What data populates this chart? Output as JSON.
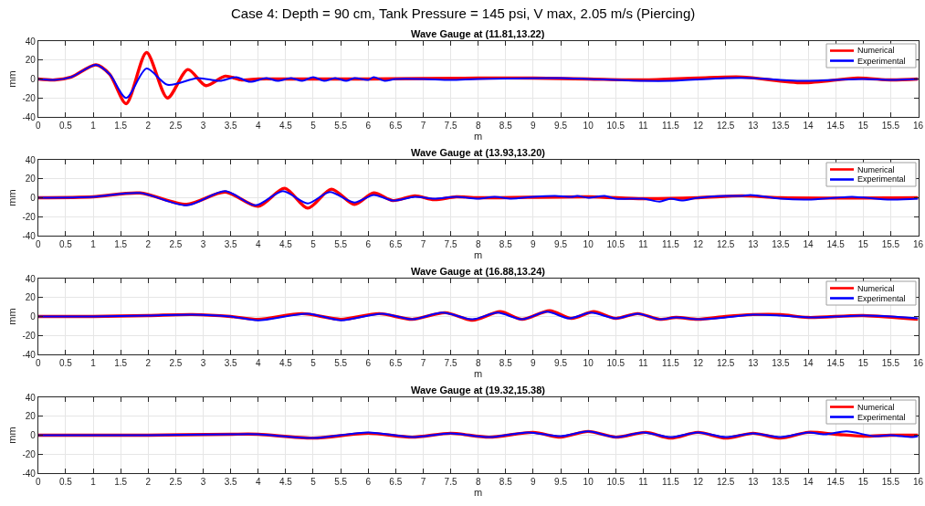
{
  "chart_data": [
    {
      "type": "line",
      "title": "Case 4: Depth = 90 cm, Tank Pressure = 145 psi, V max, 2.05 m/s (Piercing)",
      "subtitle": "Wave Gauge at (11.81,13.22)",
      "xlabel": "m",
      "ylabel": "mm",
      "xlim": [
        0,
        16
      ],
      "ylim": [
        -40,
        40
      ],
      "xticks": [
        0,
        0.5,
        1,
        1.5,
        2,
        2.5,
        3,
        3.5,
        4,
        4.5,
        5,
        5.5,
        6,
        6.5,
        7,
        7.5,
        8,
        8.5,
        9,
        9.5,
        10,
        10.5,
        11,
        11.5,
        12,
        12.5,
        13,
        13.5,
        14,
        14.5,
        15,
        15.5,
        16
      ],
      "yticks": [
        -40,
        -20,
        0,
        20,
        40
      ],
      "grid": true,
      "legend": "top right",
      "line_style": "solid",
      "series": [
        {
          "name": "Numerical",
          "color": "#ff0000",
          "x": [
            0,
            0.3,
            0.6,
            1.05,
            1.3,
            1.6,
            1.97,
            2.35,
            2.72,
            3.05,
            3.4,
            3.7,
            4,
            4.5,
            6,
            8,
            9,
            10,
            11,
            12,
            12.8,
            13.9,
            14.9,
            15.5,
            16
          ],
          "values": [
            0,
            -1,
            2,
            15,
            5,
            -26,
            28,
            -20,
            10,
            -7,
            3,
            -1,
            0,
            0,
            0,
            1,
            1,
            0,
            -1,
            1,
            2,
            -4,
            1,
            -1,
            0
          ]
        },
        {
          "name": "Experimental",
          "color": "#0000ff",
          "x": [
            0,
            0.3,
            0.6,
            1.05,
            1.3,
            1.6,
            1.97,
            2.35,
            2.9,
            3.3,
            3.6,
            3.85,
            4.15,
            4.35,
            4.6,
            4.8,
            5,
            5.2,
            5.4,
            5.6,
            5.75,
            6,
            6.1,
            6.3,
            6.5,
            7,
            7.5,
            8,
            9.5,
            10,
            11,
            11.5,
            12.5,
            13,
            13.8,
            15,
            15.5,
            16
          ],
          "values": [
            0,
            -1,
            2,
            15,
            5,
            -20,
            11,
            -6,
            1,
            -2,
            2,
            -3,
            1,
            -2,
            1,
            -2,
            2,
            -2,
            1,
            -2,
            1,
            -1,
            2,
            -2,
            0,
            0,
            -1,
            0,
            1,
            0,
            -2,
            -2,
            1,
            1,
            -2,
            0,
            -1,
            0
          ]
        }
      ]
    },
    {
      "type": "line",
      "title": "Wave Gauge at (13.93,13.20)",
      "xlabel": "m",
      "ylabel": "mm",
      "xlim": [
        0,
        16
      ],
      "ylim": [
        -40,
        40
      ],
      "xticks": [
        0,
        0.5,
        1,
        1.5,
        2,
        2.5,
        3,
        3.5,
        4,
        4.5,
        5,
        5.5,
        6,
        6.5,
        7,
        7.5,
        8,
        8.5,
        9,
        9.5,
        10,
        10.5,
        11,
        11.5,
        12,
        12.5,
        13,
        13.5,
        14,
        14.5,
        15,
        15.5,
        16
      ],
      "yticks": [
        -40,
        -20,
        0,
        20,
        40
      ],
      "grid": true,
      "legend": "top right",
      "line_style": "solid",
      "series": [
        {
          "name": "Numerical",
          "color": "#ff0000",
          "x": [
            0,
            1,
            1.85,
            2.7,
            3.4,
            4,
            4.48,
            4.9,
            5.33,
            5.75,
            6.1,
            6.45,
            6.85,
            7.2,
            7.6,
            8,
            10,
            11,
            12,
            12.8,
            13.5,
            16
          ],
          "values": [
            0,
            1,
            5,
            -7,
            6,
            -9,
            10,
            -11,
            9,
            -7,
            5,
            -3,
            2,
            -2,
            1,
            0,
            1,
            -1,
            0,
            2,
            0,
            0
          ]
        },
        {
          "name": "Experimental",
          "color": "#0000ff",
          "x": [
            0,
            1,
            1.85,
            2.7,
            3.4,
            3.95,
            4.45,
            4.9,
            5.3,
            5.75,
            6.1,
            6.45,
            6.85,
            7.2,
            7.6,
            8,
            8.3,
            8.6,
            9,
            9.4,
            9.7,
            9.8,
            10,
            10.3,
            10.5,
            11,
            11.3,
            11.5,
            11.7,
            12,
            12.5,
            12.8,
            12.95,
            13.5,
            14,
            14.5,
            14.8,
            15.5,
            16
          ],
          "values": [
            0,
            1,
            5,
            -8,
            7,
            -8,
            7,
            -6,
            6,
            -5,
            3,
            -3,
            1,
            -1,
            1,
            -1,
            1,
            -1,
            1,
            2,
            1,
            2,
            0,
            2,
            -1,
            -1,
            -4,
            -1,
            -3,
            0,
            2,
            2,
            3,
            -1,
            -2,
            0,
            1,
            -2,
            -1
          ]
        }
      ]
    },
    {
      "type": "line",
      "title": "Wave Gauge at (16.88,13.24)",
      "xlabel": "m",
      "ylabel": "mm",
      "xlim": [
        0,
        16
      ],
      "ylim": [
        -40,
        40
      ],
      "xticks": [
        0,
        0.5,
        1,
        1.5,
        2,
        2.5,
        3,
        3.5,
        4,
        4.5,
        5,
        5.5,
        6,
        6.5,
        7,
        7.5,
        8,
        8.5,
        9,
        9.5,
        10,
        10.5,
        11,
        11.5,
        12,
        12.5,
        13,
        13.5,
        14,
        14.5,
        15,
        15.5,
        16
      ],
      "yticks": [
        -40,
        -20,
        0,
        20,
        40
      ],
      "grid": true,
      "legend": "top right",
      "line_style": "solid",
      "series": [
        {
          "name": "Numerical",
          "color": "#ff0000",
          "x": [
            0,
            1,
            2,
            2.8,
            3.5,
            4,
            4.8,
            5.5,
            6.2,
            6.8,
            7.4,
            7.9,
            8.4,
            8.8,
            9.3,
            9.7,
            10.1,
            10.5,
            10.9,
            11.3,
            11.6,
            12,
            12.5,
            13,
            13.5,
            14,
            15,
            16
          ],
          "values": [
            0,
            0,
            1,
            2,
            0,
            -3,
            3,
            -3,
            3,
            -3,
            4,
            -4,
            5,
            -3,
            6,
            -2,
            5,
            -2,
            3,
            -3,
            -1,
            -3,
            0,
            2,
            2,
            -1,
            1,
            -3
          ]
        },
        {
          "name": "Experimental",
          "color": "#0000ff",
          "x": [
            0,
            1,
            2,
            2.8,
            3.5,
            4,
            4.9,
            5.5,
            6.25,
            6.8,
            7.35,
            7.9,
            8.35,
            8.8,
            9.25,
            9.65,
            10.05,
            10.5,
            10.9,
            11.3,
            11.6,
            12,
            12.5,
            13,
            13.5,
            14,
            14.5,
            15,
            15.5,
            16
          ],
          "values": [
            0,
            0,
            1,
            2,
            0,
            -4,
            3,
            -4,
            3,
            -3,
            4,
            -3,
            4,
            -3,
            5,
            -2,
            4,
            -2,
            3,
            -3,
            -1,
            -3,
            -1,
            2,
            1,
            -1,
            0,
            1,
            0,
            -2
          ]
        }
      ]
    },
    {
      "type": "line",
      "title": "Wave Gauge at (19.32,15.38)",
      "xlabel": "m",
      "ylabel": "mm",
      "xlim": [
        0,
        16
      ],
      "ylim": [
        -40,
        40
      ],
      "xticks": [
        0,
        0.5,
        1,
        1.5,
        2,
        2.5,
        3,
        3.5,
        4,
        4.5,
        5,
        5.5,
        6,
        6.5,
        7,
        7.5,
        8,
        8.5,
        9,
        9.5,
        10,
        10.5,
        11,
        11.5,
        12,
        12.5,
        13,
        13.5,
        14,
        14.5,
        15,
        15.5,
        16
      ],
      "yticks": [
        -40,
        -20,
        0,
        20,
        40
      ],
      "grid": true,
      "legend": "top right",
      "line_style": "solid",
      "series": [
        {
          "name": "Numerical",
          "color": "#ff0000",
          "x": [
            0,
            2,
            3.5,
            4,
            5,
            6,
            6.8,
            7.5,
            8.2,
            9,
            9.5,
            10,
            10.5,
            11.05,
            11.5,
            12,
            12.5,
            13,
            13.5,
            14,
            14.5,
            15,
            15.5,
            16
          ],
          "values": [
            0,
            0,
            1,
            1,
            -3,
            2,
            -2,
            2,
            -2,
            3,
            -2,
            4,
            -2,
            3,
            -3,
            3,
            -3,
            2,
            -3,
            3,
            1,
            -1,
            0,
            0
          ]
        },
        {
          "name": "Experimental",
          "color": "#0000ff",
          "x": [
            0,
            2,
            3.5,
            4,
            5,
            6,
            6.8,
            7.5,
            8.2,
            8.9,
            9.5,
            10,
            10.5,
            11,
            11.5,
            12,
            12.5,
            13,
            13.5,
            14,
            14.3,
            14.7,
            15.2,
            15.5,
            15.9,
            16
          ],
          "values": [
            0,
            0,
            1,
            1,
            -3,
            3,
            -2,
            2,
            -2,
            3,
            -1,
            4,
            -2,
            3,
            -2,
            3,
            -2,
            2,
            -2,
            3,
            1,
            4,
            -1,
            0,
            -2,
            -1
          ]
        }
      ]
    }
  ]
}
